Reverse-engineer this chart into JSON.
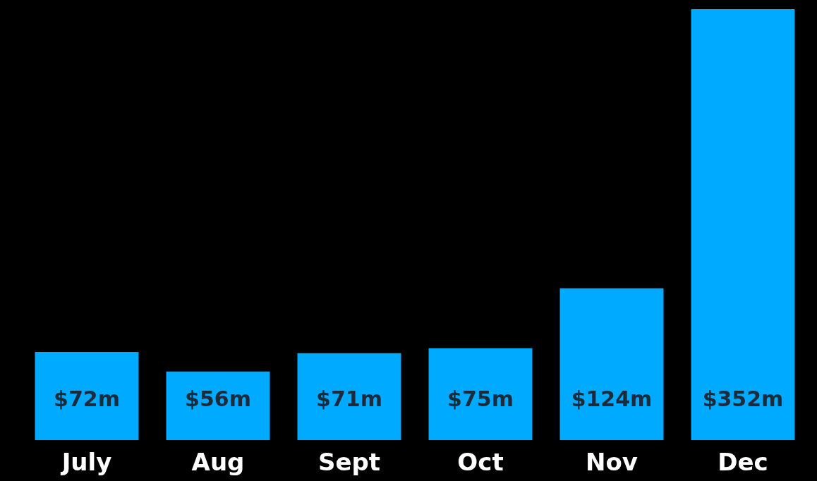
{
  "chart_data": {
    "type": "bar",
    "categories": [
      "July",
      "Aug",
      "Sept",
      "Oct",
      "Nov",
      "Dec"
    ],
    "values": [
      72,
      56,
      71,
      75,
      124,
      352
    ],
    "value_labels": [
      "$72m",
      "$56m",
      "$71m",
      "$75m",
      "$124m",
      "$352m"
    ],
    "color": "#00aaff"
  }
}
